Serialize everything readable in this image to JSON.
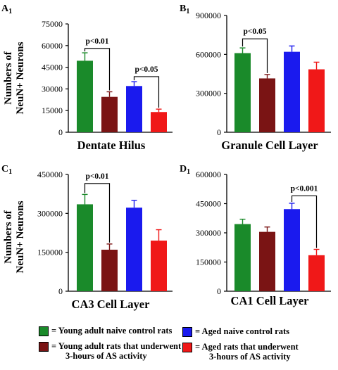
{
  "colors": {
    "young_naive": "#1a8a2a",
    "young_as": "#7a1414",
    "aged_naive": "#1a1aee",
    "aged_as": "#f01818"
  },
  "y_axis_title_line1": "Numbers of",
  "y_axis_title_line2": "NeuN+ Neurons",
  "chart_data": [
    {
      "type": "bar",
      "panel_label": "A1",
      "xlabel": "Dentate Hilus",
      "categories": [
        "Young adult naive control",
        "Young adult AS",
        "Aged naive control",
        "Aged AS"
      ],
      "values": [
        49500,
        24500,
        32000,
        14000
      ],
      "errors": [
        5500,
        3500,
        3000,
        2000
      ],
      "ylim": [
        0,
        75000
      ],
      "yticks": [
        "0",
        "15000",
        "30000",
        "45000",
        "60000",
        "75000"
      ],
      "comparisons": [
        {
          "from": 0,
          "to": 1,
          "label": "p<0.01",
          "level": 58000
        },
        {
          "from": 2,
          "to": 3,
          "label": "p<0.05",
          "level": 38500
        }
      ]
    },
    {
      "type": "bar",
      "panel_label": "B1",
      "xlabel": "Granule Cell Layer",
      "categories": [
        "Young adult naive control",
        "Young adult AS",
        "Aged naive control",
        "Aged AS"
      ],
      "values": [
        610000,
        415000,
        620000,
        485000
      ],
      "errors": [
        40000,
        30000,
        45000,
        55000
      ],
      "ylim": [
        0,
        900000
      ],
      "yticks": [
        "0",
        "300000",
        "600000",
        "900000"
      ],
      "comparisons": [
        {
          "from": 0,
          "to": 1,
          "label": "p<0.05",
          "level": 720000
        }
      ]
    },
    {
      "type": "bar",
      "panel_label": "C1",
      "xlabel": "CA3 Cell Layer",
      "categories": [
        "Young adult naive control",
        "Young adult AS",
        "Aged naive control",
        "Aged AS"
      ],
      "values": [
        335000,
        160000,
        322000,
        195000
      ],
      "errors": [
        38000,
        22000,
        28000,
        42000
      ],
      "ylim": [
        0,
        450000
      ],
      "yticks": [
        "0",
        "150000",
        "300000",
        "450000"
      ],
      "comparisons": [
        {
          "from": 0,
          "to": 1,
          "label": "p<0.01",
          "level": 415000
        }
      ]
    },
    {
      "type": "bar",
      "panel_label": "D1",
      "xlabel": "CA1 Cell Layer",
      "categories": [
        "Young adult naive control",
        "Young adult AS",
        "Aged naive control",
        "Aged AS"
      ],
      "values": [
        345000,
        305000,
        422000,
        185000
      ],
      "errors": [
        25000,
        25000,
        30000,
        30000
      ],
      "ylim": [
        0,
        600000
      ],
      "yticks": [
        "0",
        "150000",
        "300000",
        "450000",
        "600000"
      ],
      "comparisons": [
        {
          "from": 2,
          "to": 3,
          "label": "p<0.001",
          "level": 490000
        }
      ]
    }
  ],
  "legend": [
    {
      "key": "young_naive",
      "line1": "= Young adult naive control rats",
      "line2": ""
    },
    {
      "key": "aged_naive",
      "line1": "= Aged naive control rats",
      "line2": ""
    },
    {
      "key": "young_as",
      "line1": "= Young adult rats that underwent",
      "line2": "3-hours of AS activity"
    },
    {
      "key": "aged_as",
      "line1": "= Aged rats that underwent",
      "line2": "3-hours of AS activity"
    }
  ]
}
